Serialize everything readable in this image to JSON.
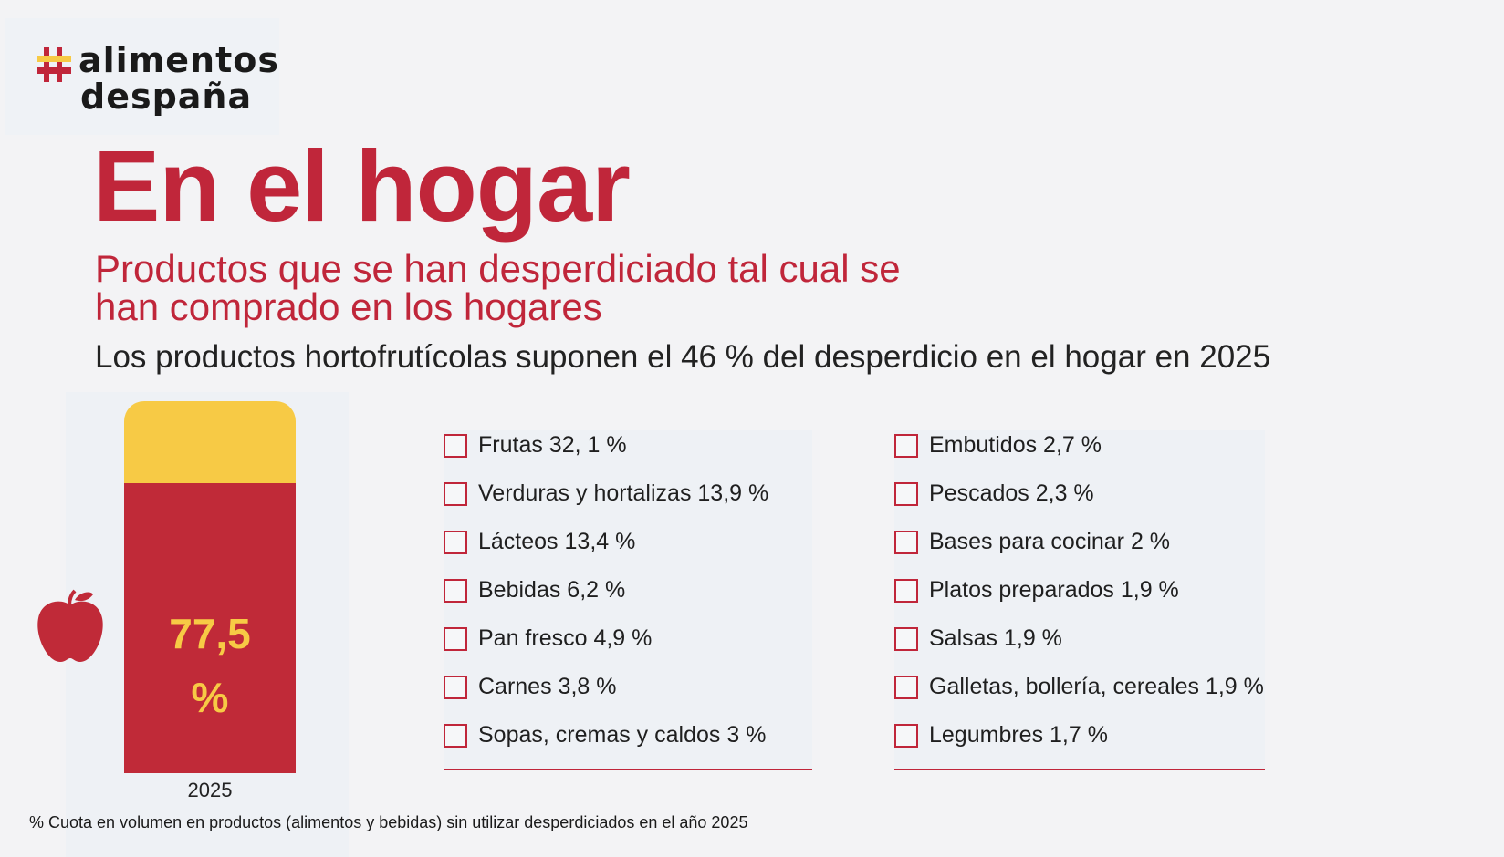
{
  "logo": {
    "line1": "alimentos",
    "line2": "despaña"
  },
  "title": "En el hogar",
  "subtitle_line1": "Productos que se han desperdiciado tal cual se",
  "subtitle_line2": "han comprado en los hogares",
  "headline": "Los productos hortofrutícolas suponen el 46 % del desperdicio en el hogar en 2025",
  "footnote": "% Cuota en volumen en productos (alimentos y bebidas) sin utilizar desperdiciados en el año 2025",
  "colors": {
    "accent_red": "#c0263a",
    "accent_yellow": "#f7ca45"
  },
  "chart_data": {
    "type": "bar",
    "categories": [
      "2025"
    ],
    "value_label_line1": "77,5",
    "value_label_line2": "%",
    "values": [
      77.5
    ],
    "remainder": 22.5,
    "ylim": [
      0,
      100
    ],
    "legend_items": [
      {
        "label": "Frutas 32, 1 %",
        "value": 32.1
      },
      {
        "label": "Verduras y hortalizas 13,9 %",
        "value": 13.9
      },
      {
        "label": "Lácteos 13,4 %",
        "value": 13.4
      },
      {
        "label": "Bebidas 6,2 %",
        "value": 6.2
      },
      {
        "label": "Pan fresco 4,9 %",
        "value": 4.9
      },
      {
        "label": "Carnes 3,8 %",
        "value": 3.8
      },
      {
        "label": "Sopas, cremas y caldos 3 %",
        "value": 3
      },
      {
        "label": "Embutidos 2,7 %",
        "value": 2.7
      },
      {
        "label": "Pescados 2,3 %",
        "value": 2.3
      },
      {
        "label": "Bases para cocinar 2 %",
        "value": 2
      },
      {
        "label": "Platos preparados 1,9 %",
        "value": 1.9
      },
      {
        "label": "Salsas 1,9 %",
        "value": 1.9
      },
      {
        "label": "Galletas, bollería, cereales 1,9 %",
        "value": 1.9
      },
      {
        "label": "Legumbres 1,7 %",
        "value": 1.7
      }
    ]
  }
}
